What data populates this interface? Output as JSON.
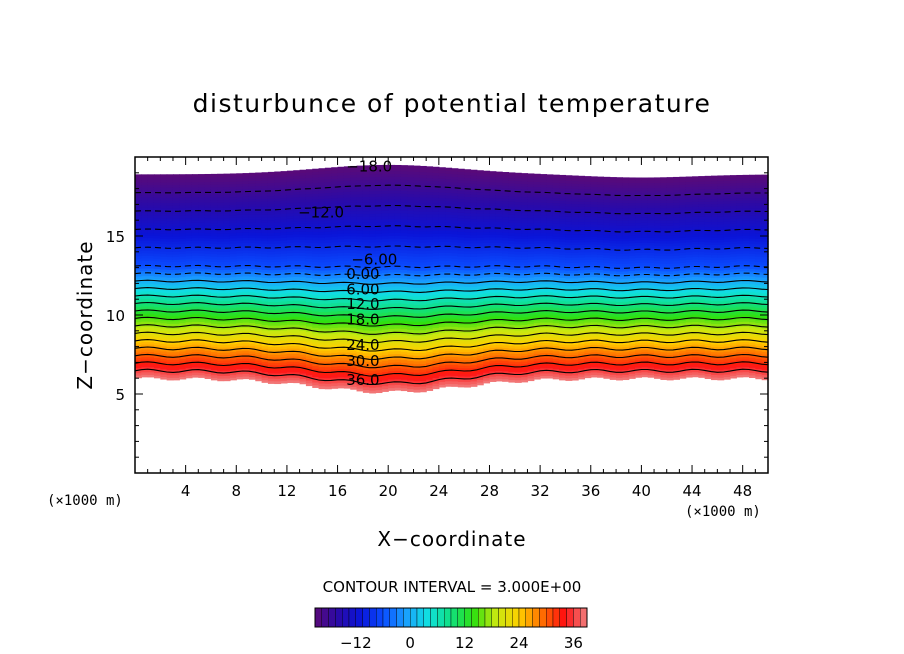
{
  "chart_data": {
    "type": "heatmap",
    "title": "disturbunce of potential temperature",
    "xlabel": "X−coordinate",
    "ylabel": "Z−coordinate",
    "x_unit_label_left": "(×1000 m)",
    "x_unit_label_right": "(×1000 m)",
    "xlim": [
      0,
      50
    ],
    "ylim": [
      0,
      20
    ],
    "x_ticks": [
      4,
      8,
      12,
      16,
      20,
      24,
      28,
      32,
      36,
      40,
      44,
      48
    ],
    "x_tick_labels": [
      "4",
      "8",
      "12",
      "16",
      "20",
      "24",
      "28",
      "32",
      "36",
      "40",
      "44",
      "48"
    ],
    "y_ticks": [
      5,
      10,
      15
    ],
    "y_tick_labels": [
      "5",
      "10",
      "15"
    ],
    "contour_interval_text": "CONTOUR INTERVAL = 3.000E+00",
    "contour_interval": 3,
    "value_range": [
      -21,
      39
    ],
    "contour_labels": [
      {
        "text": "−18.0",
        "x": 18.5,
        "z": 19.4
      },
      {
        "text": "−12.0",
        "x": 14.7,
        "z": 16.5
      },
      {
        "text": "−6.00",
        "x": 18.9,
        "z": 13.5
      },
      {
        "text": "0.00",
        "x": 18.0,
        "z": 12.6
      },
      {
        "text": "6.00",
        "x": 18.0,
        "z": 11.6
      },
      {
        "text": "12.0",
        "x": 18.0,
        "z": 10.7
      },
      {
        "text": "18.0",
        "x": 18.0,
        "z": 9.7
      },
      {
        "text": "24.0",
        "x": 18.0,
        "z": 8.1
      },
      {
        "text": "30.0",
        "x": 18.0,
        "z": 7.1
      },
      {
        "text": "36.0",
        "x": 18.0,
        "z": 5.9
      }
    ],
    "colorbar": {
      "ticks": [
        -12,
        0,
        12,
        24,
        36
      ],
      "tick_labels": [
        "−12",
        "0",
        "12",
        "24",
        "36"
      ],
      "range": [
        -21,
        39
      ]
    },
    "colormap": [
      "#5a0a78",
      "#2a0aa8",
      "#0a14d8",
      "#0a4cff",
      "#1aa0ff",
      "#10e0e0",
      "#10e080",
      "#30e010",
      "#c8e810",
      "#ffd000",
      "#ff7000",
      "#ff1010",
      "#f08080"
    ]
  }
}
